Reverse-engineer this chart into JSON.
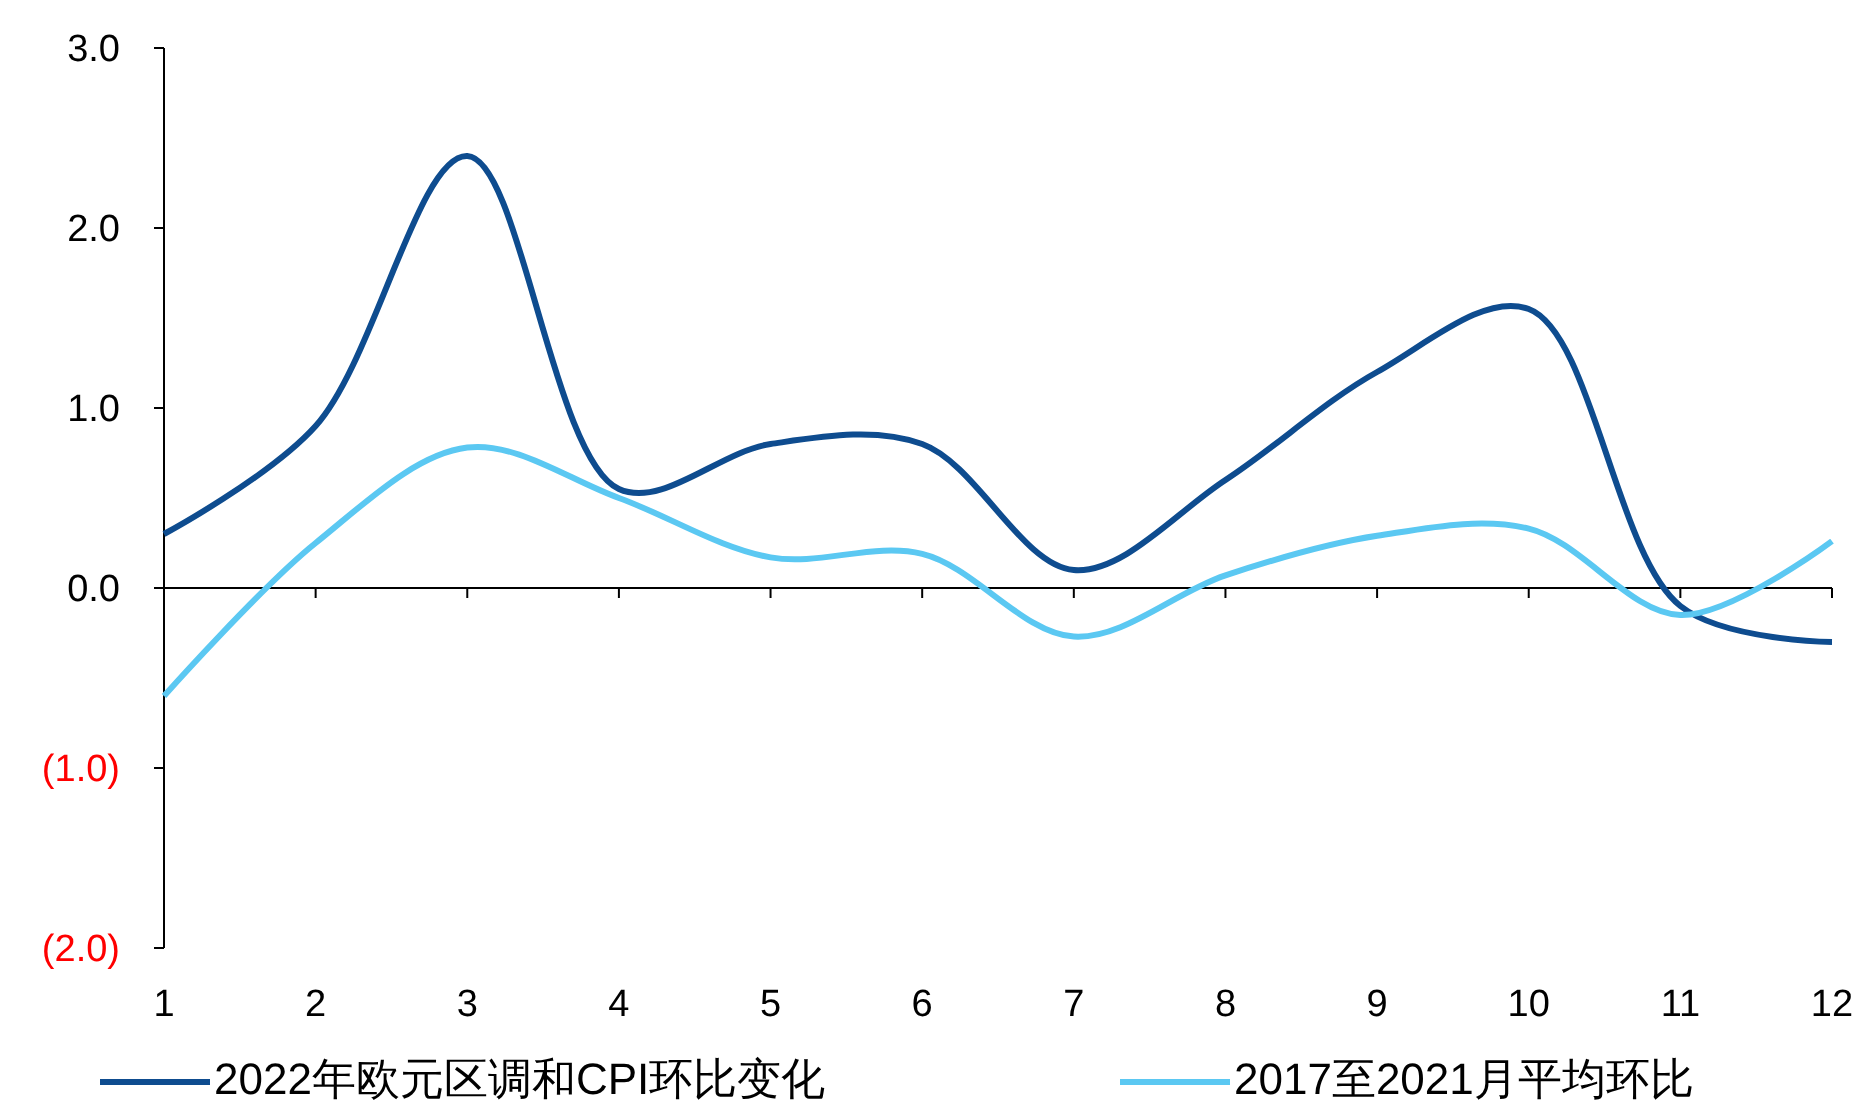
{
  "chart_data": {
    "type": "line",
    "x": [
      1,
      2,
      3,
      4,
      5,
      6,
      7,
      8,
      9,
      10,
      11,
      12
    ],
    "xlim": [
      1,
      12
    ],
    "xticks": [
      1,
      2,
      3,
      4,
      5,
      6,
      7,
      8,
      9,
      10,
      11,
      12
    ],
    "ylim": [
      -2,
      3
    ],
    "yticks": [
      {
        "value": -2,
        "label": "(2.0)"
      },
      {
        "value": -1,
        "label": "(1.0)"
      },
      {
        "value": 0,
        "label": "0.0"
      },
      {
        "value": 1,
        "label": "1.0"
      },
      {
        "value": 2,
        "label": "2.0"
      },
      {
        "value": 3,
        "label": "3.0"
      }
    ],
    "grid": false,
    "ref_lines": [
      {
        "axis": "y",
        "value": 0
      }
    ],
    "legend": "bottom",
    "marker": "none",
    "line_style": "solid",
    "series": [
      {
        "name": "2022年欧元区调和CPI环比变化",
        "color": "#0e4c8f",
        "values": [
          0.3,
          0.9,
          2.4,
          0.55,
          0.8,
          0.8,
          0.1,
          0.6,
          1.2,
          1.55,
          -0.1,
          -0.3
        ]
      },
      {
        "name": "2017至2021月平均环比",
        "color": "#5bc8f2",
        "values": [
          -0.6,
          0.25,
          0.78,
          0.5,
          0.17,
          0.19,
          -0.27,
          0.07,
          0.29,
          0.33,
          -0.15,
          0.26
        ]
      }
    ]
  }
}
